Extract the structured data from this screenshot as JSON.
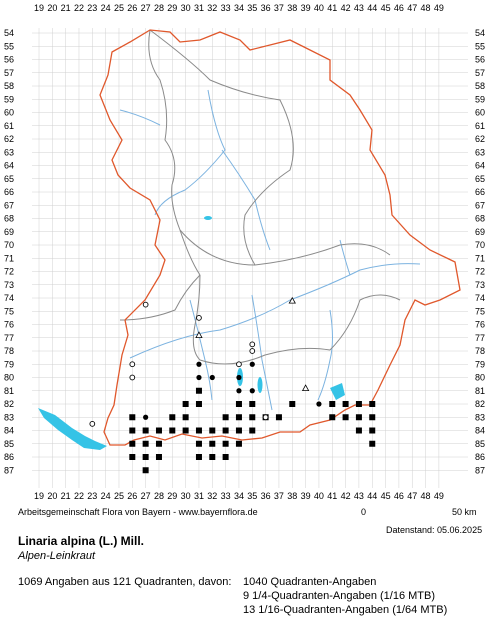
{
  "grid": {
    "x_labels": [
      "19",
      "20",
      "21",
      "22",
      "23",
      "24",
      "25",
      "26",
      "27",
      "28",
      "29",
      "30",
      "31",
      "32",
      "33",
      "34",
      "35",
      "36",
      "37",
      "38",
      "39",
      "40",
      "41",
      "42",
      "43",
      "44",
      "45",
      "46",
      "47",
      "48",
      "49"
    ],
    "y_labels": [
      "54",
      "55",
      "56",
      "57",
      "58",
      "59",
      "60",
      "61",
      "62",
      "63",
      "64",
      "65",
      "66",
      "67",
      "68",
      "69",
      "70",
      "71",
      "72",
      "73",
      "74",
      "75",
      "76",
      "77",
      "78",
      "79",
      "80",
      "81",
      "82",
      "83",
      "84",
      "85",
      "86",
      "87"
    ]
  },
  "colors": {
    "border": "#e0582c",
    "rivers": "#7cb3e0",
    "lakes": "#35c3e6",
    "districts": "#8a8a8a",
    "grid": "#d0d0d0"
  },
  "texts": {
    "credit": "Arbeitsgemeinschaft Flora von Bayern - www.bayernflora.de",
    "date": "Datenstand: 05.06.2025",
    "scale_zero": "0",
    "scale_end": "50 km",
    "scientific_name": "Linaria alpina (L.) Mill.",
    "german_name": "Alpen-Leinkraut",
    "summary": "1069 Angaben aus 121 Quadranten, davon:",
    "quadrant_line": "1040 Quadranten-Angaben",
    "q4_line": "9 1/4-Quadranten-Angaben (1/16 MTB)",
    "q16_line": "13 1/16-Quadranten-Angaben (1/64 MTB)"
  },
  "occurrences": {
    "squares": [
      [
        26,
        83
      ],
      [
        26,
        84
      ],
      [
        26,
        85
      ],
      [
        26,
        86
      ],
      [
        27,
        84
      ],
      [
        27,
        85
      ],
      [
        27,
        86
      ],
      [
        27,
        87
      ],
      [
        28,
        84
      ],
      [
        28,
        85
      ],
      [
        28,
        86
      ],
      [
        29,
        84
      ],
      [
        30,
        84
      ],
      [
        31,
        84
      ],
      [
        31,
        85
      ],
      [
        31,
        86
      ],
      [
        32,
        84
      ],
      [
        32,
        85
      ],
      [
        32,
        86
      ],
      [
        33,
        84
      ],
      [
        33,
        85
      ],
      [
        33,
        86
      ],
      [
        34,
        83
      ],
      [
        34,
        84
      ],
      [
        34,
        85
      ],
      [
        35,
        82
      ],
      [
        35,
        83
      ],
      [
        35,
        84
      ],
      [
        36,
        83
      ],
      [
        37,
        83
      ],
      [
        38,
        82
      ],
      [
        41,
        82
      ],
      [
        42,
        82
      ],
      [
        42,
        83
      ],
      [
        43,
        82
      ],
      [
        43,
        83
      ],
      [
        43,
        84
      ],
      [
        44,
        82
      ],
      [
        44,
        83
      ],
      [
        44,
        84
      ],
      [
        44,
        85
      ],
      [
        30,
        82
      ],
      [
        31,
        81
      ],
      [
        31,
        82
      ],
      [
        33,
        83
      ],
      [
        34,
        82
      ],
      [
        30,
        83
      ],
      [
        29,
        83
      ],
      [
        41,
        83
      ]
    ],
    "dots": [
      [
        27,
        83
      ],
      [
        28,
        84
      ],
      [
        29,
        83
      ],
      [
        31,
        79
      ],
      [
        31,
        80
      ],
      [
        32,
        80
      ],
      [
        34,
        80
      ],
      [
        35,
        81
      ],
      [
        34,
        81
      ],
      [
        35,
        79
      ],
      [
        36,
        83
      ],
      [
        40,
        82
      ],
      [
        26,
        84
      ]
    ],
    "circles": [
      [
        23,
        83.5
      ],
      [
        26,
        79
      ],
      [
        26,
        80
      ],
      [
        27,
        74.5
      ],
      [
        31,
        75.5
      ],
      [
        35,
        78
      ],
      [
        35,
        77.5
      ],
      [
        34,
        79
      ],
      [
        36,
        83
      ]
    ],
    "triangles": [
      [
        31,
        76.8
      ],
      [
        38,
        74.2
      ],
      [
        39,
        80.8
      ]
    ]
  }
}
